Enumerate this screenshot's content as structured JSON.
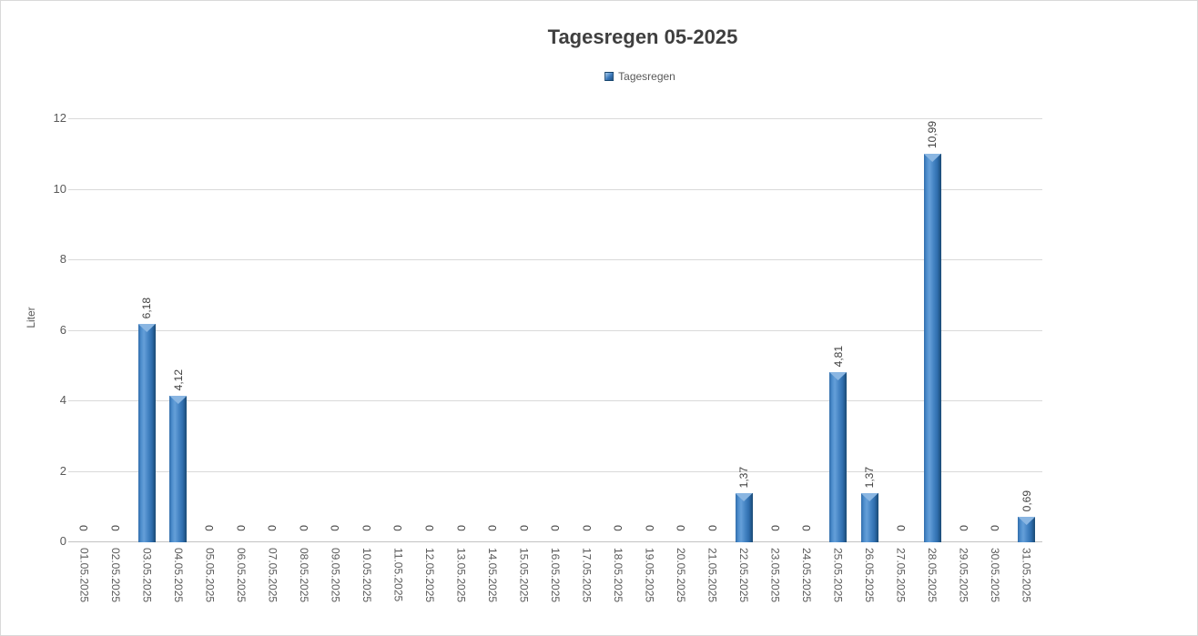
{
  "title": "Tagesregen 05-2025",
  "legend": {
    "label": "Tagesregen"
  },
  "y_axis": {
    "label": "Liter"
  },
  "colors": {
    "bar_main": "#3a78bb",
    "bar_dark_edge": "#1b4a75",
    "bar_highlight": "#8ab6e2",
    "gridline": "#d9d9d9",
    "axis_line": "#c3c3c3",
    "title_text": "#3f3f3f",
    "axis_text": "#595959",
    "label_text": "#404040"
  },
  "chart_data": {
    "type": "bar",
    "title": "Tagesregen 05-2025",
    "xlabel": "",
    "ylabel": "Liter",
    "ylim": [
      0,
      12
    ],
    "y_ticks": [
      0,
      2,
      4,
      6,
      8,
      10,
      12
    ],
    "grid": true,
    "legend_position": "top",
    "series_name": "Tagesregen",
    "categories": [
      "01.05.2025",
      "02.05.2025",
      "03.05.2025",
      "04.05.2025",
      "05.05.2025",
      "06.05.2025",
      "07.05.2025",
      "08.05.2025",
      "09.05.2025",
      "10.05.2025",
      "11.05.2025",
      "12.05.2025",
      "13.05.2025",
      "14.05.2025",
      "15.05.2025",
      "16.05.2025",
      "17.05.2025",
      "18.05.2025",
      "19.05.2025",
      "20.05.2025",
      "21.05.2025",
      "22.05.2025",
      "23.05.2025",
      "24.05.2025",
      "25.05.2025",
      "26.05.2025",
      "27.05.2025",
      "28.05.2025",
      "29.05.2025",
      "30.05.2025",
      "31.05.2025"
    ],
    "values": [
      0,
      0,
      6.18,
      4.12,
      0,
      0,
      0,
      0,
      0,
      0,
      0,
      0,
      0,
      0,
      0,
      0,
      0,
      0,
      0,
      0,
      0,
      1.37,
      0,
      0,
      4.81,
      1.37,
      0,
      10.99,
      0,
      0,
      0.69
    ],
    "value_labels": [
      "0",
      "0",
      "6,18",
      "4,12",
      "0",
      "0",
      "0",
      "0",
      "0",
      "0",
      "0",
      "0",
      "0",
      "0",
      "0",
      "0",
      "0",
      "0",
      "0",
      "0",
      "0",
      "1,37",
      "0",
      "0",
      "4,81",
      "1,37",
      "0",
      "10,99",
      "0",
      "0",
      "0,69"
    ]
  }
}
